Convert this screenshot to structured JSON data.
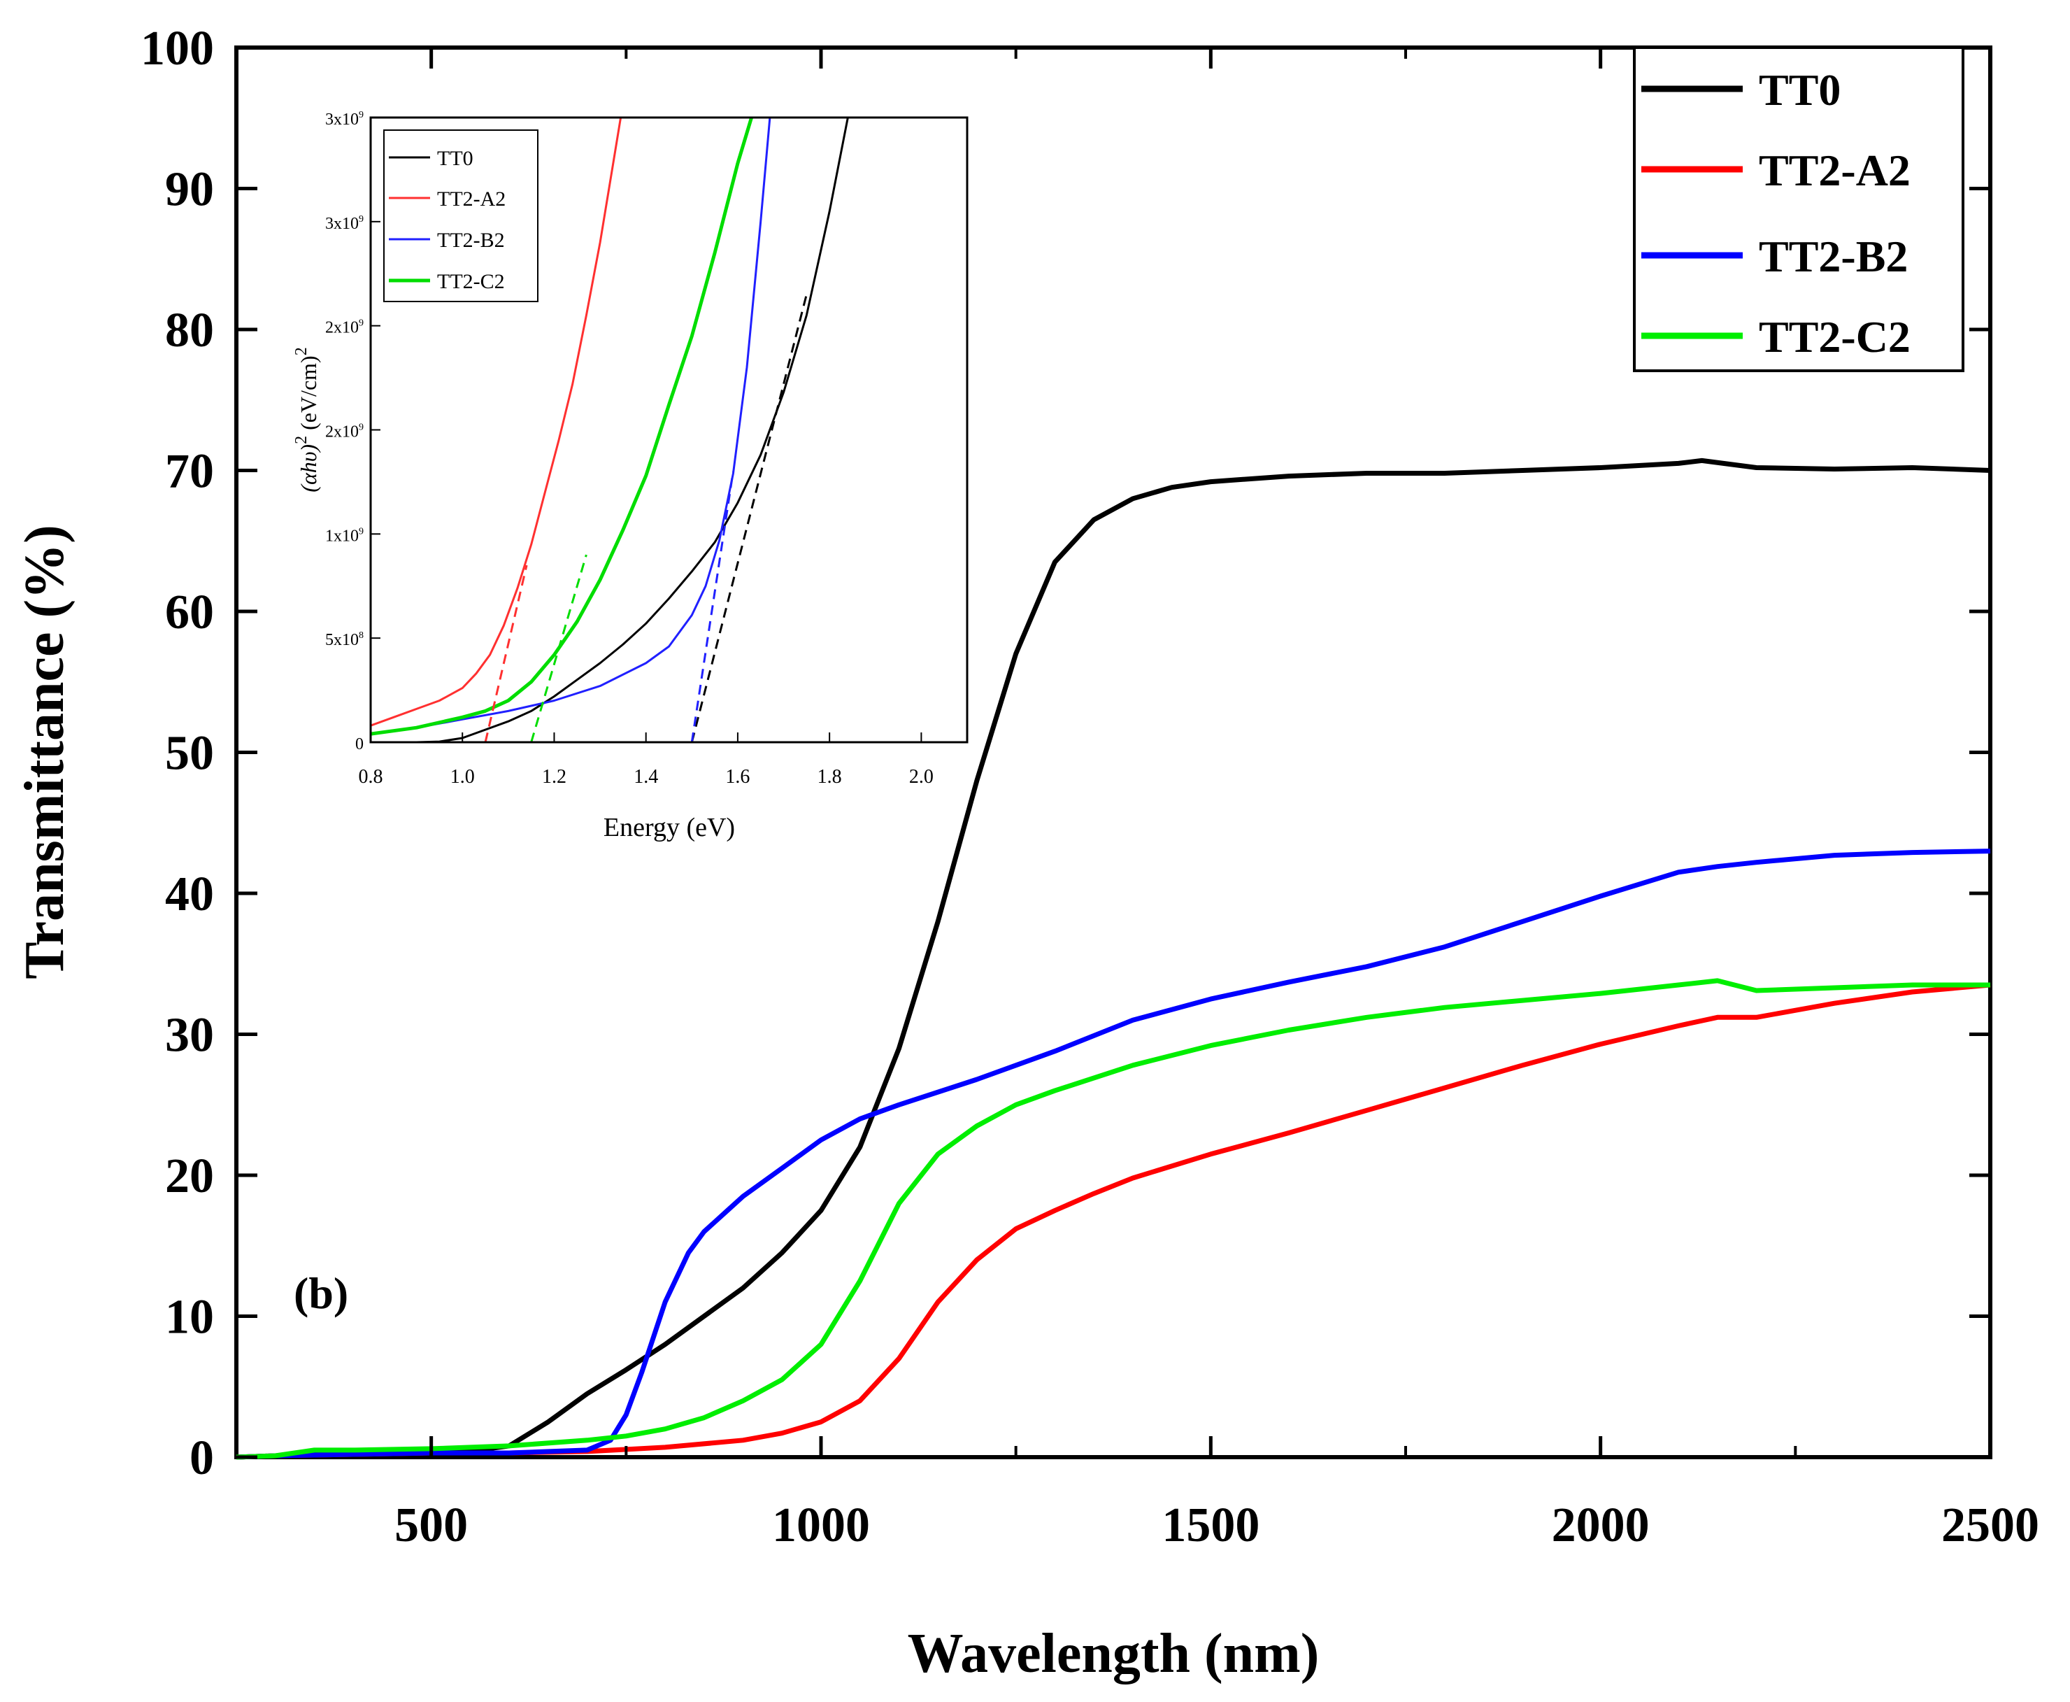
{
  "chart_data": [
    {
      "id": "main",
      "type": "line",
      "title": "",
      "panel_label": "(b)",
      "xlabel": "Wavelength (nm)",
      "ylabel": "Transmittance (%)",
      "xlim": [
        250,
        2500
      ],
      "ylim": [
        0,
        100
      ],
      "x_ticks": [
        500,
        1000,
        1500,
        2000,
        2500
      ],
      "x_tick_labels": [
        "500",
        "1000",
        "1500",
        "2000",
        "2500"
      ],
      "x_minor_step": 250,
      "y_ticks": [
        0,
        10,
        20,
        30,
        40,
        50,
        60,
        70,
        80,
        90,
        100
      ],
      "y_tick_labels": [
        "0",
        "10",
        "20",
        "30",
        "40",
        "50",
        "60",
        "70",
        "80",
        "90",
        "100"
      ],
      "grid": false,
      "legend_position": "top-right",
      "series": [
        {
          "name": "TT0",
          "color": "#000000",
          "x": [
            250,
            300,
            400,
            500,
            560,
            600,
            650,
            700,
            750,
            800,
            850,
            900,
            950,
            1000,
            1050,
            1100,
            1150,
            1200,
            1250,
            1300,
            1350,
            1400,
            1450,
            1500,
            1600,
            1700,
            1800,
            1900,
            2000,
            2100,
            2130,
            2200,
            2300,
            2400,
            2500
          ],
          "y": [
            0,
            0.1,
            0.3,
            0.4,
            0.5,
            0.8,
            2.5,
            4.5,
            6.2,
            8.0,
            10,
            12,
            14.5,
            17.5,
            22,
            29,
            38,
            48,
            57,
            63.5,
            66.5,
            68,
            68.8,
            69.2,
            69.6,
            69.8,
            69.8,
            70,
            70.2,
            70.5,
            70.7,
            70.2,
            70.1,
            70.2,
            70
          ]
        },
        {
          "name": "TT2-A2",
          "color": "#ff0000",
          "x": [
            250,
            300,
            400,
            500,
            600,
            700,
            800,
            900,
            950,
            1000,
            1050,
            1100,
            1150,
            1200,
            1250,
            1300,
            1350,
            1400,
            1500,
            1600,
            1700,
            1800,
            1900,
            2000,
            2100,
            2150,
            2200,
            2300,
            2400,
            2500
          ],
          "y": [
            0,
            0.1,
            0.2,
            0.3,
            0.3,
            0.4,
            0.7,
            1.2,
            1.7,
            2.5,
            4,
            7,
            11,
            14,
            16.2,
            17.5,
            18.7,
            19.8,
            21.5,
            23,
            24.6,
            26.2,
            27.8,
            29.3,
            30.6,
            31.2,
            31.2,
            32.2,
            33,
            33.5
          ]
        },
        {
          "name": "TT2-B2",
          "color": "#0000ff",
          "x": [
            250,
            300,
            400,
            500,
            600,
            700,
            730,
            750,
            770,
            800,
            830,
            850,
            880,
            900,
            950,
            1000,
            1050,
            1100,
            1200,
            1300,
            1400,
            1500,
            1600,
            1700,
            1800,
            1900,
            2000,
            2100,
            2150,
            2200,
            2300,
            2400,
            2500
          ],
          "y": [
            0,
            0.1,
            0.2,
            0.3,
            0.3,
            0.5,
            1.2,
            3,
            6,
            11,
            14.5,
            16,
            17.5,
            18.5,
            20.5,
            22.5,
            24,
            25,
            26.8,
            28.8,
            31,
            32.5,
            33.7,
            34.8,
            36.2,
            38,
            39.8,
            41.5,
            41.9,
            42.2,
            42.7,
            42.9,
            43
          ]
        },
        {
          "name": "TT2-C2",
          "color": "#00ee00",
          "x": [
            250,
            300,
            350,
            400,
            500,
            600,
            700,
            750,
            800,
            850,
            900,
            950,
            1000,
            1050,
            1100,
            1150,
            1200,
            1250,
            1300,
            1400,
            1500,
            1600,
            1700,
            1800,
            1900,
            2000,
            2100,
            2150,
            2200,
            2300,
            2400,
            2500
          ],
          "y": [
            0,
            0.1,
            0.5,
            0.5,
            0.6,
            0.8,
            1.2,
            1.5,
            2,
            2.8,
            4,
            5.5,
            8,
            12.5,
            18,
            21.5,
            23.5,
            25,
            26,
            27.8,
            29.2,
            30.3,
            31.2,
            31.9,
            32.4,
            32.9,
            33.5,
            33.8,
            33.1,
            33.3,
            33.5,
            33.5
          ]
        }
      ]
    },
    {
      "id": "inset",
      "type": "line",
      "xlabel": "Energy (eV)",
      "ylabel_parts": [
        "(αhυ)",
        "2",
        " (eV/cm)",
        "2"
      ],
      "xlim": [
        0.8,
        2.1
      ],
      "ylim": [
        0,
        3000000000
      ],
      "x_ticks": [
        0.8,
        1.0,
        1.2,
        1.4,
        1.6,
        1.8,
        2.0
      ],
      "x_tick_labels": [
        "0.8",
        "1.0",
        "1.2",
        "1.4",
        "1.6",
        "1.8",
        "2.0"
      ],
      "y_ticks": [
        0,
        500000000,
        1000000000,
        1500000000,
        2000000000,
        2500000000,
        3000000000
      ],
      "y_tick_labels": [
        {
          "base": "0",
          "exp": ""
        },
        {
          "base": "5x10",
          "exp": "8"
        },
        {
          "base": "1x10",
          "exp": "9"
        },
        {
          "base": "2x10",
          "exp": "9"
        },
        {
          "base": "2x10",
          "exp": "9"
        },
        {
          "base": "3x10",
          "exp": "9"
        },
        {
          "base": "3x10",
          "exp": "9"
        }
      ],
      "legend_position": "top-left",
      "series": [
        {
          "name": "TT0",
          "color": "#000000",
          "x": [
            0.8,
            0.9,
            0.95,
            1.0,
            1.05,
            1.1,
            1.15,
            1.2,
            1.25,
            1.3,
            1.35,
            1.4,
            1.45,
            1.5,
            1.55,
            1.6,
            1.65,
            1.7,
            1.75,
            1.8,
            1.84
          ],
          "y": [
            0,
            0,
            3000000,
            20000000,
            60000000,
            100000000,
            150000000,
            220000000,
            300000000,
            380000000,
            470000000,
            570000000,
            690000000,
            820000000,
            960000000,
            1150000000,
            1380000000,
            1680000000,
            2050000000,
            2550000000,
            3000000000
          ]
        },
        {
          "name": "TT2-A2",
          "color": "#ff3030",
          "x": [
            0.8,
            0.85,
            0.9,
            0.95,
            1.0,
            1.03,
            1.06,
            1.09,
            1.12,
            1.15,
            1.18,
            1.21,
            1.24,
            1.27,
            1.3,
            1.33,
            1.345
          ],
          "y": [
            80000000,
            120000000,
            160000000,
            200000000,
            260000000,
            330000000,
            420000000,
            560000000,
            740000000,
            950000000,
            1200000000,
            1450000000,
            1720000000,
            2050000000,
            2400000000,
            2800000000,
            3000000000
          ]
        },
        {
          "name": "TT2-B2",
          "color": "#2020ff",
          "x": [
            0.8,
            0.9,
            1.0,
            1.1,
            1.2,
            1.3,
            1.4,
            1.45,
            1.5,
            1.53,
            1.56,
            1.59,
            1.62,
            1.65,
            1.67
          ],
          "y": [
            40000000,
            70000000,
            110000000,
            150000000,
            200000000,
            270000000,
            380000000,
            460000000,
            610000000,
            750000000,
            970000000,
            1290000000,
            1800000000,
            2500000000,
            3000000000
          ]
        },
        {
          "name": "TT2-C2",
          "color": "#00dd00",
          "x": [
            0.8,
            0.9,
            1.0,
            1.05,
            1.1,
            1.15,
            1.2,
            1.25,
            1.3,
            1.35,
            1.4,
            1.45,
            1.5,
            1.55,
            1.6,
            1.63
          ],
          "y": [
            40000000,
            70000000,
            120000000,
            150000000,
            200000000,
            290000000,
            420000000,
            580000000,
            780000000,
            1020000000,
            1280000000,
            1620000000,
            1950000000,
            2350000000,
            2780000000,
            3000000000
          ]
        }
      ],
      "tangent_lines": [
        {
          "series": "TT0",
          "color": "#000000",
          "x": [
            1.5,
            1.75
          ],
          "y": [
            0,
            2150000000
          ]
        },
        {
          "series": "TT2-A2",
          "color": "#ff3030",
          "x": [
            1.05,
            1.14
          ],
          "y": [
            0,
            850000000
          ]
        },
        {
          "series": "TT2-B2",
          "color": "#2020ff",
          "x": [
            1.5,
            1.59
          ],
          "y": [
            0,
            1300000000
          ]
        },
        {
          "series": "TT2-C2",
          "color": "#00dd00",
          "x": [
            1.15,
            1.27
          ],
          "y": [
            0,
            900000000
          ]
        }
      ]
    }
  ]
}
